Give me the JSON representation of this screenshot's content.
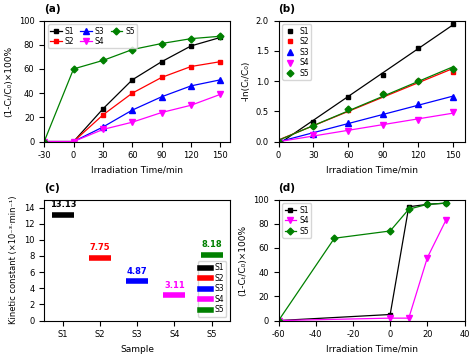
{
  "chart_data": [
    {
      "type": "line",
      "title": "(a)",
      "x_label": "Irradiation Time/min",
      "y_label": "(1-Cₜ/C₀)×100%",
      "xlim": [
        -30,
        160
      ],
      "ylim": [
        0,
        100
      ],
      "xticks": [
        -30,
        0,
        30,
        60,
        90,
        120,
        150
      ],
      "yticks": [
        0,
        20,
        40,
        60,
        80,
        100
      ],
      "legend": "upper left",
      "series": [
        {
          "name": "S1",
          "color": "black",
          "marker": "square",
          "x": [
            -30,
            0,
            30,
            60,
            90,
            120,
            150
          ],
          "values": [
            0,
            0,
            27,
            51,
            66,
            79,
            86
          ]
        },
        {
          "name": "S2",
          "color": "red",
          "marker": "square",
          "x": [
            -30,
            0,
            30,
            60,
            90,
            120,
            150
          ],
          "values": [
            0,
            0,
            22,
            40,
            53,
            62,
            66
          ]
        },
        {
          "name": "S3",
          "color": "blue",
          "marker": "triangle_up",
          "x": [
            -30,
            0,
            30,
            60,
            90,
            120,
            150
          ],
          "values": [
            0,
            0,
            12,
            26,
            37,
            46,
            51
          ]
        },
        {
          "name": "S4",
          "color": "magenta",
          "marker": "triangle_down",
          "x": [
            -30,
            0,
            30,
            60,
            90,
            120,
            150
          ],
          "values": [
            0,
            0,
            10,
            16,
            24,
            30,
            39
          ]
        },
        {
          "name": "S5",
          "color": "green",
          "marker": "diamond",
          "x": [
            -30,
            0,
            30,
            60,
            90,
            120,
            150
          ],
          "values": [
            0,
            60,
            67,
            76,
            81,
            85,
            87
          ]
        }
      ]
    },
    {
      "type": "scatter",
      "title": "(b)",
      "x_label": "Irradiation Time/min",
      "y_label": "-ln(Cₜ/C₀)",
      "xlim": [
        0,
        160
      ],
      "ylim": [
        0,
        2.0
      ],
      "xticks": [
        0,
        30,
        60,
        90,
        120,
        150
      ],
      "yticks": [
        0.0,
        0.5,
        1.0,
        1.5,
        2.0
      ],
      "legend": "upper left",
      "series": [
        {
          "name": "S1",
          "color": "black",
          "marker": "square",
          "x": [
            0,
            30,
            60,
            90,
            120,
            150
          ],
          "values": [
            0,
            0.33,
            0.73,
            1.1,
            1.55,
            1.95
          ],
          "fit": {
            "x": [
              0,
              150
            ],
            "values": [
              -0.041,
              1.9276
            ]
          }
        },
        {
          "name": "S2",
          "color": "red",
          "marker": "square",
          "x": [
            0,
            30,
            60,
            90,
            120,
            150
          ],
          "values": [
            0,
            0.25,
            0.52,
            0.78,
            1.0,
            1.15
          ],
          "fit": {
            "x": [
              0,
              150
            ],
            "values": [
              0.0267,
              1.2067
            ]
          }
        },
        {
          "name": "S3",
          "color": "blue",
          "marker": "triangle_up",
          "x": [
            0,
            30,
            60,
            90,
            120,
            150
          ],
          "values": [
            0,
            0.13,
            0.3,
            0.46,
            0.62,
            0.73
          ],
          "fit": {
            "x": [
              0,
              150
            ],
            "values": [
              -0.0038,
              0.7505
            ]
          }
        },
        {
          "name": "S4",
          "color": "magenta",
          "marker": "triangle_down",
          "x": [
            0,
            30,
            60,
            90,
            120,
            150
          ],
          "values": [
            0,
            0.11,
            0.17,
            0.27,
            0.36,
            0.49
          ],
          "fit": {
            "x": [
              0,
              150
            ],
            "values": [
              -0.0024,
              0.469
            ]
          }
        },
        {
          "name": "S5",
          "color": "green",
          "marker": "diamond",
          "x": [
            0,
            30,
            60,
            90,
            120,
            150
          ],
          "values": [
            0,
            0.25,
            0.54,
            0.78,
            1.0,
            1.2
          ],
          "fit": {
            "x": [
              0,
              150
            ],
            "values": [
              0.0219,
              1.2348
            ]
          }
        }
      ]
    },
    {
      "type": "dot",
      "title": "(c)",
      "x_label": "Sample",
      "y_label": "Kinetic constant (×10⁻³·min⁻¹)",
      "categories": [
        "S1",
        "S2",
        "S3",
        "S4",
        "S5"
      ],
      "values": [
        13.13,
        7.75,
        4.87,
        3.11,
        8.18
      ],
      "colors": [
        "black",
        "red",
        "blue",
        "magenta",
        "green"
      ],
      "ylim": [
        0,
        15
      ],
      "yticks": [
        0,
        2,
        4,
        6,
        8,
        10,
        12,
        14
      ],
      "data_labels": true,
      "legend": "lower right"
    },
    {
      "type": "line",
      "title": "(d)",
      "x_label": "Irradiation Time/min",
      "y_label": "(1-Cₜ/C₀)×100%",
      "xlim": [
        -60,
        40
      ],
      "ylim": [
        0,
        100
      ],
      "xticks": [
        -60,
        -40,
        -20,
        0,
        20,
        40
      ],
      "yticks": [
        0,
        20,
        40,
        60,
        80,
        100
      ],
      "legend": "upper left",
      "series": [
        {
          "name": "S1",
          "color": "black",
          "marker": "square",
          "x": [
            -60,
            0,
            10,
            20,
            30
          ],
          "values": [
            0,
            5,
            94,
            96,
            97
          ]
        },
        {
          "name": "S4",
          "color": "magenta",
          "marker": "triangle_down",
          "x": [
            -60,
            0,
            10,
            20,
            30
          ],
          "values": [
            0,
            2,
            2,
            52,
            83
          ]
        },
        {
          "name": "S5",
          "color": "green",
          "marker": "diamond",
          "x": [
            -60,
            -30,
            0,
            10,
            20,
            30
          ],
          "values": [
            0,
            68,
            74,
            92,
            96,
            97
          ]
        }
      ]
    }
  ]
}
